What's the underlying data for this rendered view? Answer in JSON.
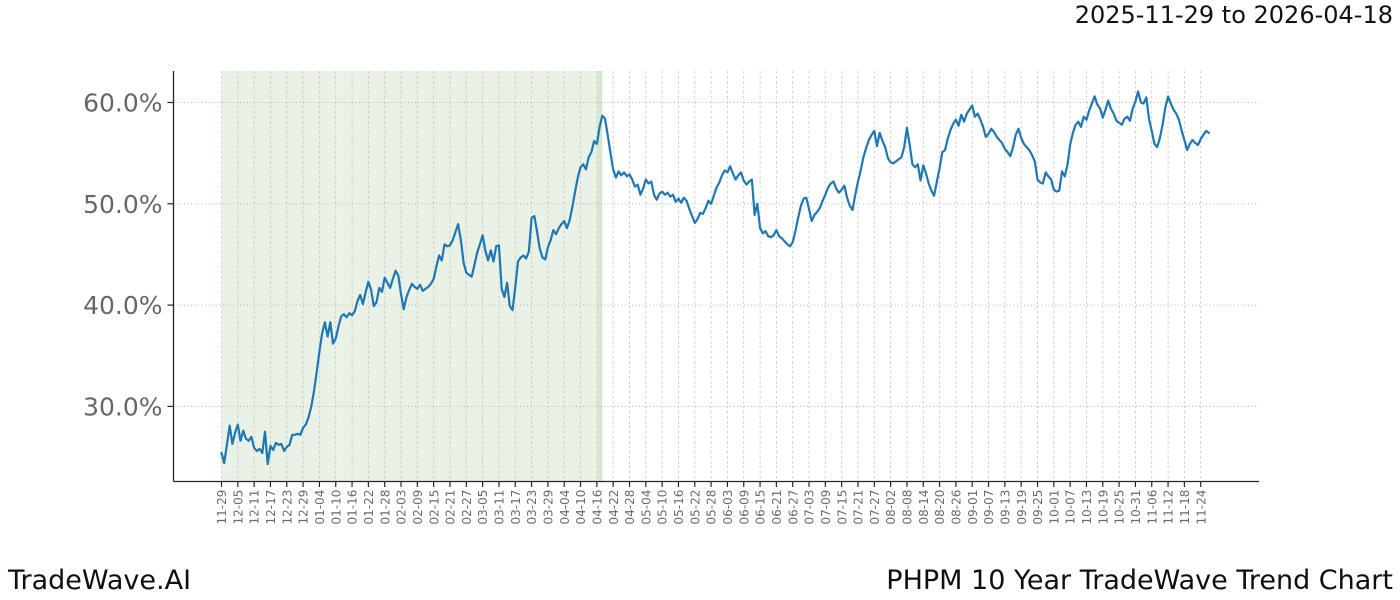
{
  "header": {
    "date_range": "2025-11-29 to 2026-04-18"
  },
  "footer": {
    "brand": "TradeWave.AI",
    "title": "PHPM 10 Year TradeWave Trend Chart"
  },
  "chart_data": {
    "type": "line",
    "title": "PHPM 10 Year TradeWave Trend Chart",
    "series_name": "PHPM TradeWave trend",
    "line_color": "#1f77b4",
    "grid": true,
    "legend_position": "none",
    "ylim": [
      22.5,
      63.2
    ],
    "y_gridlines": [
      30,
      40,
      50,
      60
    ],
    "y_tick_suffix": "%",
    "start_date": "2025-11-29",
    "x_tick_interval_days": 6,
    "x_tick_labels": [
      "11-29",
      "12-05",
      "12-11",
      "12-17",
      "12-23",
      "12-29",
      "01-04",
      "01-10",
      "01-16",
      "01-22",
      "01-28",
      "02-03",
      "02-09",
      "02-15",
      "02-21",
      "02-27",
      "03-05",
      "03-11",
      "03-17",
      "03-23",
      "03-29",
      "04-04",
      "04-10",
      "04-16",
      "04-22",
      "04-28",
      "05-04",
      "05-10",
      "05-16",
      "05-22",
      "05-28",
      "06-03",
      "06-09",
      "06-15",
      "06-21",
      "06-27",
      "07-03",
      "07-09",
      "07-15",
      "07-21",
      "07-27",
      "08-02",
      "08-08",
      "08-14",
      "08-20",
      "08-26",
      "09-01",
      "09-07",
      "09-13",
      "09-19",
      "09-25",
      "10-01",
      "10-07",
      "10-13",
      "10-19",
      "10-25",
      "10-31",
      "11-06",
      "11-12",
      "11-18",
      "11-24"
    ],
    "highlight_span": {
      "start_date": "2025-11-29",
      "end_date": "2026-04-18",
      "start_day": 0,
      "end_day": 140,
      "fill": "#e9f2e5",
      "edge": "#d6e7cf"
    },
    "values_pct_daily": [
      25.4,
      24.4,
      26.2,
      28.1,
      26.3,
      27.4,
      28.2,
      26.6,
      27.6,
      26.8,
      26.6,
      27.0,
      25.9,
      25.6,
      25.8,
      25.4,
      27.5,
      24.3,
      26.1,
      25.7,
      26.4,
      26.2,
      26.3,
      25.6,
      26.0,
      26.2,
      27.2,
      27.2,
      27.3,
      27.2,
      27.9,
      28.2,
      28.9,
      30.0,
      31.5,
      33.4,
      35.4,
      37.2,
      38.3,
      36.9,
      38.3,
      36.2,
      36.7,
      37.9,
      38.9,
      39.1,
      38.8,
      39.2,
      39.0,
      39.4,
      40.4,
      41.0,
      40.1,
      41.3,
      42.3,
      41.5,
      39.9,
      40.3,
      41.7,
      41.3,
      42.7,
      42.2,
      41.7,
      42.6,
      43.4,
      42.9,
      41.1,
      39.6,
      40.8,
      41.5,
      42.1,
      41.8,
      41.6,
      42.0,
      41.4,
      41.6,
      41.8,
      42.1,
      42.6,
      43.8,
      44.9,
      44.4,
      46.0,
      45.8,
      45.9,
      46.4,
      47.2,
      48.0,
      46.4,
      44.2,
      43.2,
      43.0,
      42.8,
      44.0,
      45.2,
      46.0,
      46.9,
      45.4,
      44.4,
      45.4,
      44.3,
      45.8,
      45.9,
      41.6,
      40.8,
      42.2,
      39.9,
      39.5,
      41.8,
      44.3,
      44.7,
      44.9,
      44.6,
      45.3,
      48.6,
      48.8,
      47.3,
      45.6,
      44.7,
      44.5,
      45.7,
      46.4,
      47.4,
      47.0,
      47.6,
      48.0,
      48.3,
      47.6,
      48.4,
      49.7,
      51.2,
      52.6,
      53.6,
      53.9,
      53.4,
      54.6,
      55.1,
      56.2,
      55.9,
      57.6,
      58.7,
      58.4,
      56.8,
      55.0,
      53.4,
      52.6,
      53.2,
      52.8,
      53.1,
      52.7,
      52.9,
      52.4,
      51.7,
      51.9,
      50.9,
      51.5,
      52.4,
      52.0,
      52.2,
      50.9,
      50.4,
      51.0,
      51.2,
      50.9,
      51.1,
      50.7,
      50.9,
      50.2,
      50.5,
      50.1,
      50.6,
      50.3,
      49.5,
      48.8,
      48.1,
      48.5,
      49.1,
      49.0,
      49.6,
      50.3,
      50.0,
      50.8,
      51.6,
      52.1,
      52.8,
      53.3,
      53.1,
      53.7,
      53.0,
      52.4,
      52.8,
      53.1,
      52.3,
      51.9,
      52.2,
      52.4,
      48.9,
      50.0,
      47.6,
      47.1,
      47.3,
      46.8,
      46.7,
      46.9,
      47.4,
      46.8,
      46.6,
      46.3,
      46.0,
      45.8,
      46.2,
      47.3,
      48.6,
      49.8,
      50.5,
      50.6,
      49.5,
      48.3,
      48.9,
      49.2,
      49.6,
      50.3,
      50.9,
      51.6,
      52.0,
      52.2,
      51.5,
      51.1,
      51.4,
      51.8,
      50.6,
      49.8,
      49.4,
      50.9,
      52.2,
      53.3,
      54.6,
      55.5,
      56.3,
      56.8,
      57.2,
      55.7,
      57.0,
      56.2,
      55.6,
      54.5,
      54.1,
      54.0,
      54.2,
      54.4,
      54.6,
      55.6,
      57.5,
      55.8,
      53.9,
      53.6,
      53.9,
      52.3,
      53.8,
      53.0,
      52.0,
      51.3,
      50.8,
      52.2,
      53.5,
      55.1,
      55.3,
      56.4,
      57.3,
      57.9,
      58.3,
      57.7,
      58.8,
      58.1,
      58.9,
      59.3,
      59.7,
      58.6,
      58.9,
      58.3,
      57.6,
      56.6,
      56.9,
      57.4,
      57.1,
      56.6,
      56.3,
      56.0,
      55.4,
      55.1,
      54.7,
      55.6,
      56.8,
      57.4,
      56.5,
      55.9,
      55.6,
      55.3,
      54.8,
      54.2,
      52.4,
      52.1,
      52.0,
      53.1,
      52.7,
      52.4,
      51.4,
      51.2,
      51.3,
      53.2,
      52.7,
      53.8,
      55.8,
      57.0,
      57.8,
      58.1,
      57.6,
      58.6,
      58.3,
      59.2,
      59.9,
      60.6,
      59.8,
      59.4,
      58.5,
      59.3,
      60.2,
      59.4,
      58.9,
      58.2,
      58.0,
      57.8,
      58.4,
      58.6,
      58.2,
      59.4,
      60.1,
      61.1,
      60.0,
      59.9,
      60.5,
      58.4,
      57.2,
      55.9,
      55.6,
      56.5,
      57.8,
      59.5,
      60.6,
      59.9,
      59.3,
      58.9,
      58.3,
      57.2,
      56.3,
      55.3,
      55.9,
      56.3,
      56.0,
      55.8,
      56.4,
      56.8,
      57.2,
      57.0
    ]
  }
}
